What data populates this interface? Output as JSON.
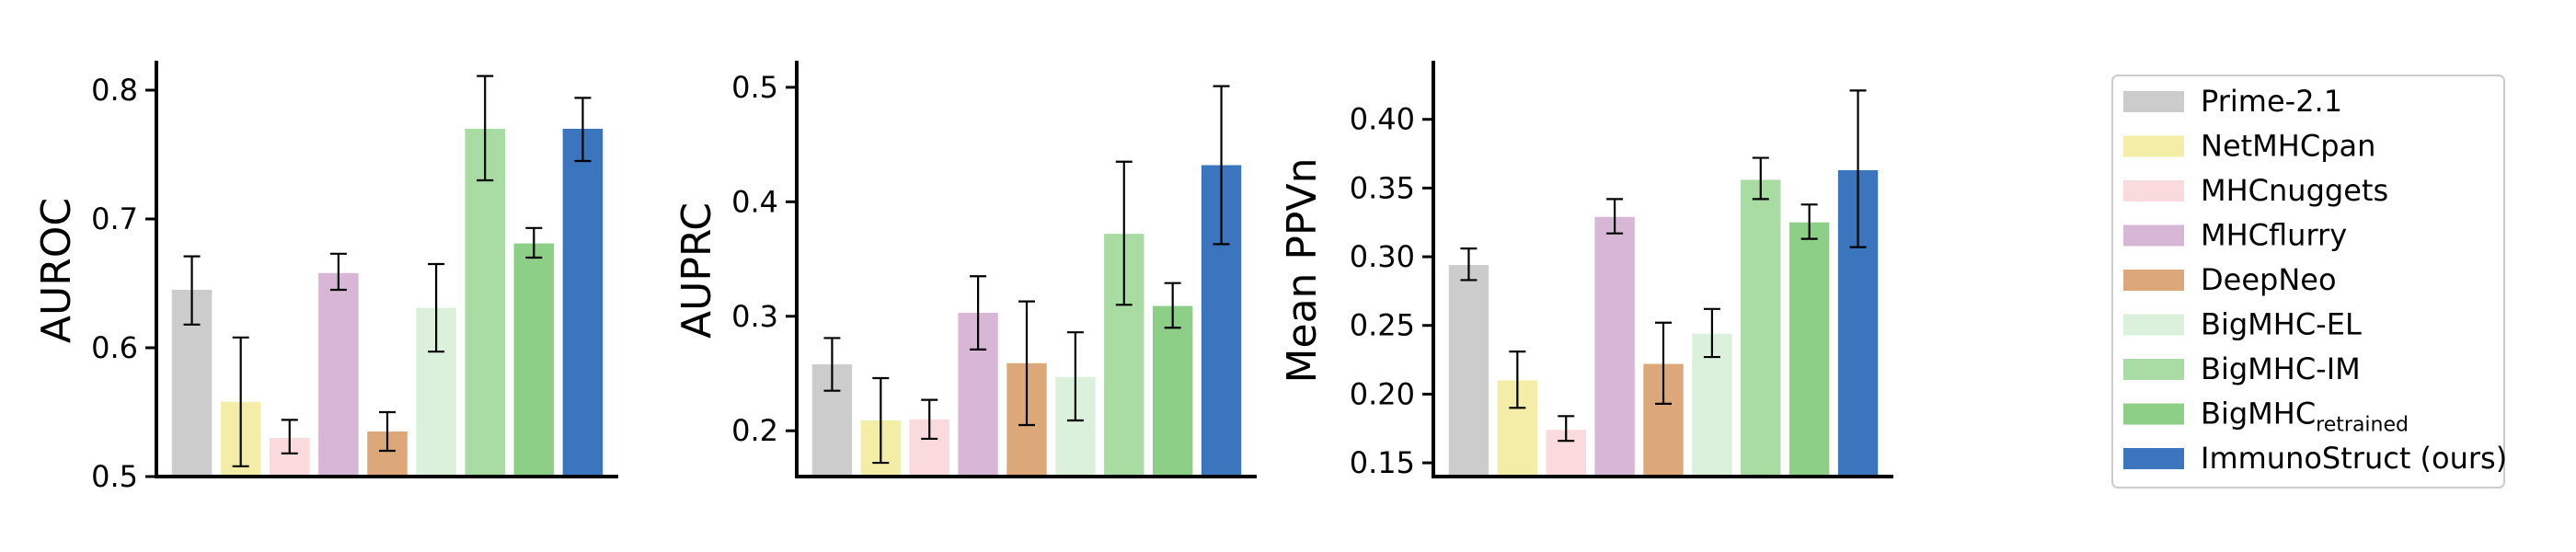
{
  "chart_data": {
    "type": "bar",
    "models": [
      {
        "name": "Prime-2.1",
        "color": "#cccccc"
      },
      {
        "name": "NetMHCpan",
        "color": "#f3eda8"
      },
      {
        "name": "MHCnuggets",
        "color": "#fadadd"
      },
      {
        "name": "MHCflurry",
        "color": "#d8b7d6"
      },
      {
        "name": "DeepNeo",
        "color": "#dca87a"
      },
      {
        "name": "BigMHC-EL",
        "color": "#dcf1dc"
      },
      {
        "name": "BigMHC-IM",
        "color": "#a9dca3"
      },
      {
        "name": "BigMHC",
        "subscript": "retrained",
        "color": "#8dcf86"
      },
      {
        "name": "ImmunoStruct (ours)",
        "color": "#3a75bd"
      }
    ],
    "legend": {
      "position": "right"
    },
    "charts": [
      {
        "ylabel": "AUROC",
        "ylim": [
          0.5,
          0.82
        ],
        "yticks": [
          "0.5",
          "0.6",
          "0.7",
          "0.8"
        ],
        "tick_values": [
          0.5,
          0.6,
          0.7,
          0.8
        ],
        "values": [
          0.645,
          0.558,
          0.53,
          0.658,
          0.535,
          0.631,
          0.77,
          0.681,
          0.77
        ],
        "err_low": [
          0.618,
          0.508,
          0.518,
          0.645,
          0.52,
          0.597,
          0.73,
          0.67,
          0.745
        ],
        "err_high": [
          0.671,
          0.608,
          0.544,
          0.673,
          0.55,
          0.665,
          0.811,
          0.693,
          0.794
        ]
      },
      {
        "ylabel": "AUPRC",
        "ylim": [
          0.16,
          0.52
        ],
        "yticks": [
          "0.2",
          "0.3",
          "0.4",
          "0.5"
        ],
        "tick_values": [
          0.2,
          0.3,
          0.4,
          0.5
        ],
        "values": [
          0.258,
          0.209,
          0.21,
          0.303,
          0.259,
          0.247,
          0.372,
          0.309,
          0.432
        ],
        "err_low": [
          0.235,
          0.172,
          0.193,
          0.271,
          0.205,
          0.209,
          0.31,
          0.29,
          0.363
        ],
        "err_high": [
          0.281,
          0.246,
          0.227,
          0.335,
          0.313,
          0.286,
          0.435,
          0.329,
          0.501
        ]
      },
      {
        "ylabel": "Mean PPVn",
        "ylim": [
          0.14,
          0.44
        ],
        "yticks": [
          "0.15",
          "0.20",
          "0.25",
          "0.30",
          "0.35",
          "0.40"
        ],
        "tick_values": [
          0.15,
          0.2,
          0.25,
          0.3,
          0.35,
          0.4
        ],
        "values": [
          0.294,
          0.21,
          0.174,
          0.329,
          0.222,
          0.244,
          0.356,
          0.325,
          0.363
        ],
        "err_low": [
          0.283,
          0.19,
          0.166,
          0.317,
          0.193,
          0.227,
          0.342,
          0.313,
          0.307
        ],
        "err_high": [
          0.306,
          0.231,
          0.184,
          0.342,
          0.252,
          0.262,
          0.372,
          0.338,
          0.421
        ]
      }
    ]
  }
}
